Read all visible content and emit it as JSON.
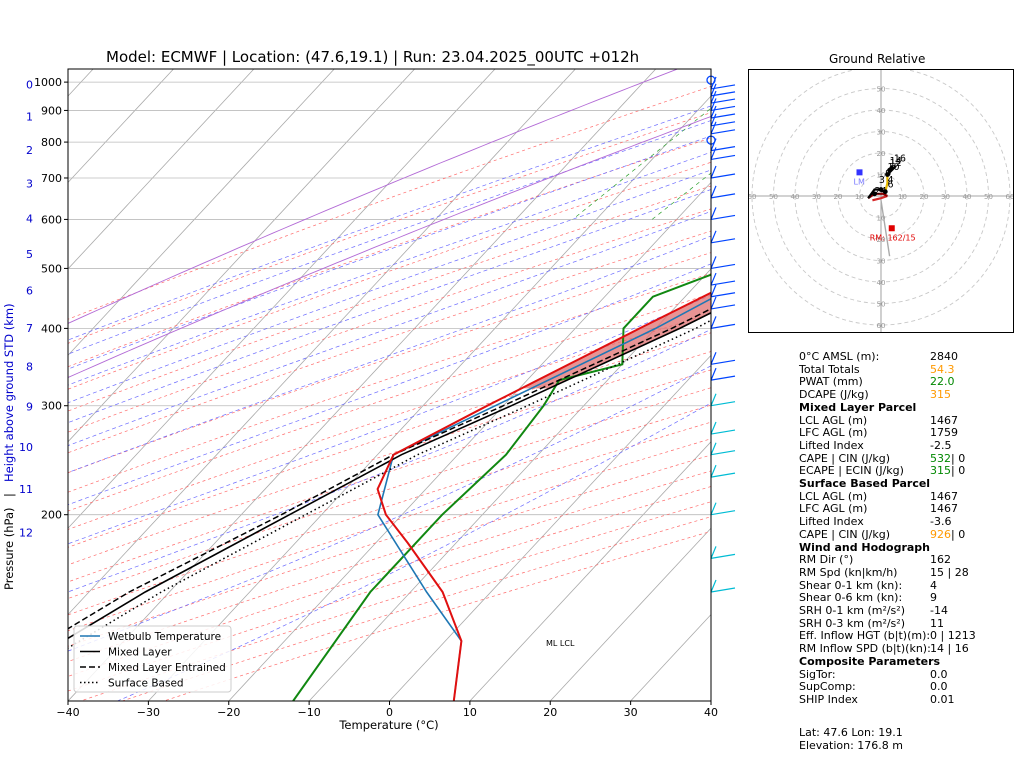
{
  "title": "Model: ECMWF | Location: (47.6,19.1) | Run: 23.04.2025_00UTC +012h",
  "skewt": {
    "xlabel": "Temperature (°C)",
    "ylabel_left": "Pressure (hPa)",
    "ylabel_right": "Height above ground STD (km)",
    "x_ticks": [
      "−40",
      "−30",
      "−20",
      "−10",
      "0",
      "10",
      "20",
      "30",
      "40"
    ],
    "p_ticks": [
      "200",
      "300",
      "400",
      "500",
      "600",
      "700",
      "800",
      "900",
      "1000"
    ],
    "height_ticks": [
      "0",
      "1",
      "2",
      "3",
      "4",
      "5",
      "6",
      "7",
      "8",
      "9",
      "10",
      "11",
      "12"
    ],
    "ml_lcl_label": "ML LCL",
    "legend": [
      {
        "label": "Wetbulb Temperature",
        "color": "#1f77b4",
        "style": "solid"
      },
      {
        "label": "Mixed Layer",
        "color": "#000000",
        "style": "solid"
      },
      {
        "label": "Mixed Layer Entrained",
        "color": "#000000",
        "style": "dashed"
      },
      {
        "label": "Surface Based",
        "color": "#000000",
        "style": "dotted"
      }
    ]
  },
  "chart_data": {
    "type": "skew-t",
    "x_range": [
      -40,
      40
    ],
    "p_range": [
      1050,
      100
    ],
    "temperature": [
      [
        1000,
        23.8
      ],
      [
        950,
        20
      ],
      [
        900,
        17
      ],
      [
        850,
        15.5
      ],
      [
        800,
        14
      ],
      [
        700,
        8
      ],
      [
        600,
        3
      ],
      [
        500,
        -4
      ],
      [
        400,
        -12
      ],
      [
        300,
        -22
      ],
      [
        250,
        -28
      ],
      [
        220,
        -26
      ],
      [
        200,
        -22
      ],
      [
        180,
        -16
      ],
      [
        150,
        -6
      ],
      [
        125,
        2
      ],
      [
        100,
        8
      ]
    ],
    "dewpoint": [
      [
        1000,
        12.5
      ],
      [
        970,
        12.5
      ],
      [
        900,
        13.5
      ],
      [
        850,
        11
      ],
      [
        800,
        8
      ],
      [
        750,
        3
      ],
      [
        700,
        -1
      ],
      [
        650,
        -2
      ],
      [
        600,
        -3
      ],
      [
        550,
        -3
      ],
      [
        500,
        -8
      ],
      [
        450,
        -14
      ],
      [
        400,
        -14
      ],
      [
        350,
        -10
      ],
      [
        330,
        -16
      ],
      [
        300,
        -15
      ],
      [
        250,
        -14
      ],
      [
        200,
        -15
      ],
      [
        150,
        -15
      ],
      [
        100,
        -12
      ]
    ],
    "wetbulb": [
      [
        1000,
        16.5
      ],
      [
        950,
        16
      ],
      [
        900,
        15
      ],
      [
        850,
        13
      ],
      [
        800,
        10
      ],
      [
        700,
        6
      ],
      [
        600,
        2
      ],
      [
        500,
        -3
      ],
      [
        400,
        -10
      ],
      [
        300,
        -21
      ],
      [
        250,
        -28
      ],
      [
        200,
        -23
      ],
      [
        150,
        -8
      ],
      [
        125,
        2
      ],
      [
        100,
        8
      ]
    ],
    "parcel_mixed_layer": [
      [
        1000,
        23.8
      ],
      [
        900,
        17
      ],
      [
        850,
        15.5
      ],
      [
        800,
        15
      ],
      [
        700,
        11
      ],
      [
        600,
        7
      ],
      [
        500,
        1
      ],
      [
        400,
        -7
      ],
      [
        300,
        -19
      ],
      [
        250,
        -27
      ],
      [
        200,
        -34
      ],
      [
        150,
        -43
      ],
      [
        100,
        -53
      ]
    ],
    "parcel_entrained": [
      [
        1000,
        23.8
      ],
      [
        900,
        17
      ],
      [
        850,
        15.5
      ],
      [
        800,
        14.5
      ],
      [
        700,
        10
      ],
      [
        600,
        6
      ],
      [
        500,
        0
      ],
      [
        400,
        -8
      ],
      [
        300,
        -20
      ],
      [
        250,
        -28
      ],
      [
        200,
        -35
      ],
      [
        150,
        -45
      ],
      [
        100,
        -55
      ]
    ],
    "parcel_surface_based": [
      [
        1000,
        23.8
      ],
      [
        900,
        17.3
      ],
      [
        850,
        16.3
      ],
      [
        800,
        15.8
      ],
      [
        700,
        12
      ],
      [
        600,
        8
      ],
      [
        500,
        2
      ],
      [
        400,
        -5
      ],
      [
        300,
        -17
      ],
      [
        250,
        -25
      ],
      [
        200,
        -32
      ],
      [
        150,
        -41
      ],
      [
        100,
        -51
      ]
    ]
  },
  "hodograph": {
    "title": "Ground Relative",
    "ring_labels": [
      "10",
      "20",
      "30",
      "40",
      "50",
      "60"
    ],
    "lm_label": "LM",
    "rm_label": "RM: 162/15",
    "heights": [
      "3",
      "4",
      "6",
      "9",
      "10",
      "12",
      "14",
      "16",
      "24"
    ],
    "colors": {
      "h0_1": "#d62728",
      "h1_3": "#8b0000",
      "h3_6": "#000000",
      "h6_9": "#e6b800",
      "h9_12": "#000000",
      "rm": "#e00000",
      "lm": "#3333ff"
    }
  },
  "params": [
    {
      "k": "0°C AMSL (m):",
      "v": "2840",
      "c": "#000000"
    },
    {
      "k": "Total Totals",
      "v": "54.3",
      "c": "#ff9900"
    },
    {
      "k": "PWAT (mm)",
      "v": "22.0",
      "c": "#008800"
    },
    {
      "k": "DCAPE (J/kg)",
      "v": "315",
      "c": "#ff9900"
    },
    {
      "h": "Mixed Layer Parcel"
    },
    {
      "k": "LCL AGL (m)",
      "v": "1467",
      "c": "#000000"
    },
    {
      "k": "LFC AGL (m)",
      "v": "1759",
      "c": "#000000"
    },
    {
      "k": "Lifted Index",
      "v": "-2.5",
      "c": "#000000"
    },
    {
      "k": "CAPE | CIN (J/kg)",
      "v": "532",
      "c": "#008800",
      "v2": " | 0"
    },
    {
      "k": "ECAPE | ECIN (J/kg)",
      "v": "315",
      "c": "#008800",
      "v2": " | 0"
    },
    {
      "h": "Surface Based Parcel"
    },
    {
      "k": "LCL AGL (m)",
      "v": "1467",
      "c": "#000000"
    },
    {
      "k": "LFC AGL (m)",
      "v": "1467",
      "c": "#000000"
    },
    {
      "k": "Lifted Index",
      "v": "-3.6",
      "c": "#000000"
    },
    {
      "k": "CAPE | CIN (J/kg)",
      "v": "926",
      "c": "#ff9900",
      "v2": " | 0"
    },
    {
      "h": "Wind and Hodograph"
    },
    {
      "k": "RM Dir (°)",
      "v": "162",
      "c": "#000000"
    },
    {
      "k": "RM Spd (kn|km/h)",
      "v": "15 | 28",
      "c": "#000000"
    },
    {
      "k": "Shear 0-1 km (kn):",
      "v": "4",
      "c": "#000000"
    },
    {
      "k": "Shear 0-6 km (kn):",
      "v": "9",
      "c": "#000000"
    },
    {
      "k": "SRH 0-1 km (m²/s²)",
      "v": "-14",
      "c": "#000000"
    },
    {
      "k": "SRH 0-3 km (m²/s²)",
      "v": "11",
      "c": "#000000"
    },
    {
      "k": "Eff. Inflow HGT (b|t)(m):",
      "v": "0 | 1213",
      "c": "#000000"
    },
    {
      "k": "RM Inflow SPD (b|t)(kn):",
      "v": "14 | 16",
      "c": "#000000"
    },
    {
      "h": "Composite Parameters"
    },
    {
      "k": "SigTor:",
      "v": "0.0",
      "c": "#000000"
    },
    {
      "k": "SupComp:",
      "v": "0.0",
      "c": "#000000"
    },
    {
      "k": "SHIP Index",
      "v": "0.01",
      "c": "#000000"
    }
  ],
  "footer": {
    "latlon": "Lat: 47.6  Lon: 19.1",
    "elevation": "Elevation: 176.8 m"
  }
}
